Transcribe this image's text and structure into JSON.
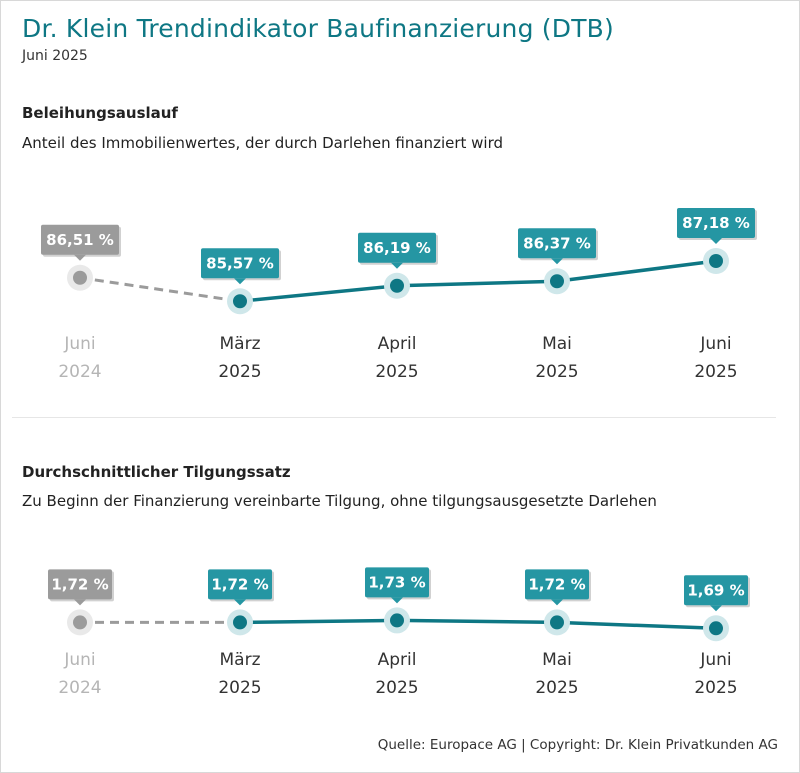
{
  "header": {
    "title": "Dr. Klein Trendindikator Baufinanzierung (DTB)",
    "date": "Juni 2025"
  },
  "colors": {
    "accent": "#0e7784",
    "label_fill": "#2596a3",
    "prior_gray": "#9b9b9b",
    "halo": "#cfe7ea"
  },
  "sections": [
    {
      "title": "Beleihungsauslauf",
      "description": "Anteil des Immobilienwertes, der durch Darlehen finanziert wird"
    },
    {
      "title": "Durchschnittlicher Tilgungssatz",
      "description": "Zu Beginn der Finanzierung vereinbarte Tilgung, ohne tilgungsausgesetzte Darlehen"
    }
  ],
  "chart_data": [
    {
      "type": "line",
      "title": "Beleihungsauslauf",
      "unit": "%",
      "categories": [
        [
          "Juni",
          "2024"
        ],
        [
          "März",
          "2025"
        ],
        [
          "April",
          "2025"
        ],
        [
          "Mai",
          "2025"
        ],
        [
          "Juni",
          "2025"
        ]
      ],
      "values": [
        86.51,
        85.57,
        86.19,
        86.37,
        87.18
      ],
      "labels": [
        "86,51 %",
        "85,57 %",
        "86,19 %",
        "86,37 %",
        "87,18 %"
      ],
      "reference_index": 0,
      "ylim": [
        85.3,
        87.5
      ]
    },
    {
      "type": "line",
      "title": "Durchschnittlicher Tilgungssatz",
      "unit": "%",
      "categories": [
        [
          "Juni",
          "2024"
        ],
        [
          "März",
          "2025"
        ],
        [
          "April",
          "2025"
        ],
        [
          "Mai",
          "2025"
        ],
        [
          "Juni",
          "2025"
        ]
      ],
      "values": [
        1.72,
        1.72,
        1.73,
        1.72,
        1.69
      ],
      "labels": [
        "1,72 %",
        "1,72 %",
        "1,73 %",
        "1,72 %",
        "1,69 %"
      ],
      "reference_index": 0,
      "ylim": [
        1.6,
        1.9
      ]
    }
  ],
  "footer": {
    "source": "Quelle: Europace AG | Copyright: Dr. Klein Privatkunden AG"
  }
}
